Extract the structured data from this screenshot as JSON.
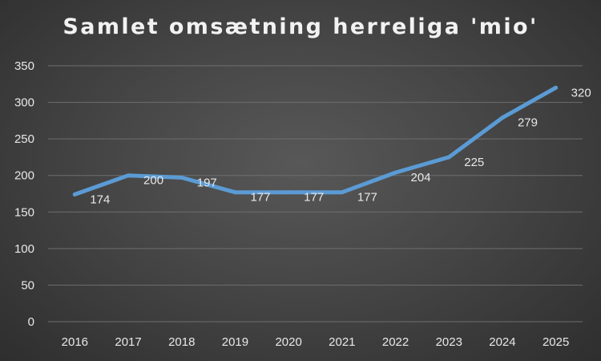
{
  "chart_data": {
    "type": "line",
    "title": "Samlet omsætning herreliga 'mio'",
    "xlabel": "",
    "ylabel": "",
    "categories": [
      "2016",
      "2017",
      "2018",
      "2019",
      "2020",
      "2021",
      "2022",
      "2023",
      "2024",
      "2025"
    ],
    "series": [
      {
        "values": [
          174,
          200,
          197,
          177,
          177,
          177,
          204,
          225,
          279,
          320
        ],
        "color": "#5b9bd5"
      }
    ],
    "data_labels": true,
    "ylim": [
      0,
      350
    ],
    "yticks": [
      0,
      50,
      100,
      150,
      200,
      250,
      300,
      350
    ],
    "grid": true,
    "legend": "none",
    "colors": {
      "text": "#e8e8e8",
      "grid": "#6e6e6e",
      "line": "#5b9bd5"
    }
  }
}
